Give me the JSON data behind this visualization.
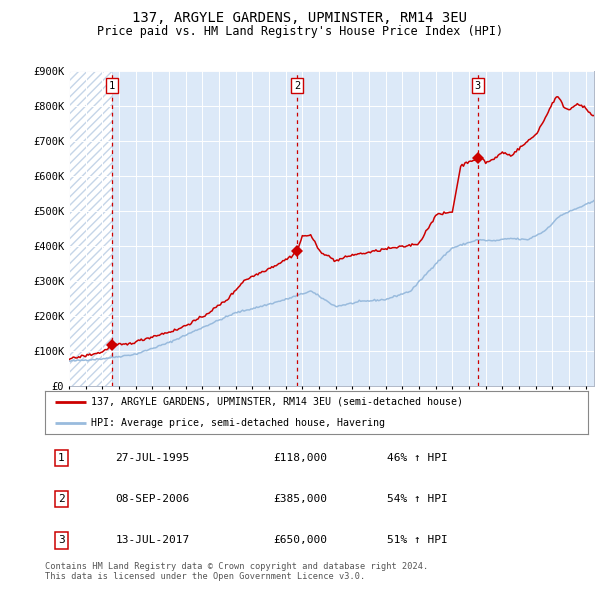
{
  "title": "137, ARGYLE GARDENS, UPMINSTER, RM14 3EU",
  "subtitle": "Price paid vs. HM Land Registry's House Price Index (HPI)",
  "background_color": "#ffffff",
  "plot_bg_color": "#dce9f8",
  "hatch_color": "#c5d5e8",
  "ylim": [
    0,
    900000
  ],
  "yticks": [
    0,
    100000,
    200000,
    300000,
    400000,
    500000,
    600000,
    700000,
    800000,
    900000
  ],
  "ytick_labels": [
    "£0",
    "£100K",
    "£200K",
    "£300K",
    "£400K",
    "£500K",
    "£600K",
    "£700K",
    "£800K",
    "£900K"
  ],
  "x_start_year": 1993,
  "x_end_year": 2024,
  "sale_dates": [
    1995.57,
    2006.68,
    2017.53
  ],
  "sale_prices": [
    118000,
    385000,
    650000
  ],
  "sale_labels": [
    "1",
    "2",
    "3"
  ],
  "sale_date_strs": [
    "27-JUL-1995",
    "08-SEP-2006",
    "13-JUL-2017"
  ],
  "sale_price_strs": [
    "£118,000",
    "£385,000",
    "£650,000"
  ],
  "sale_pct_strs": [
    "46% ↑ HPI",
    "54% ↑ HPI",
    "51% ↑ HPI"
  ],
  "hpi_color": "#99bbdd",
  "price_color": "#cc0000",
  "marker_color": "#cc0000",
  "legend_label_price": "137, ARGYLE GARDENS, UPMINSTER, RM14 3EU (semi-detached house)",
  "legend_label_hpi": "HPI: Average price, semi-detached house, Havering",
  "footer_text": "Contains HM Land Registry data © Crown copyright and database right 2024.\nThis data is licensed under the Open Government Licence v3.0."
}
